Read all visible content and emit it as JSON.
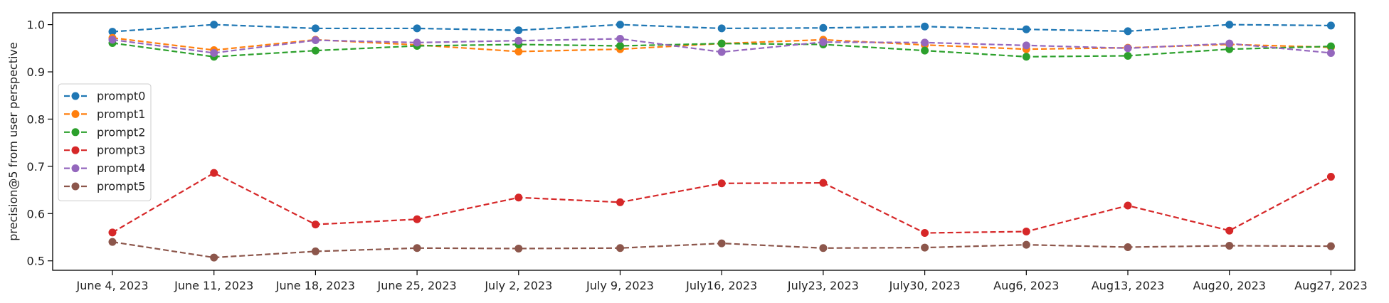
{
  "chart_data": {
    "type": "line",
    "title": "",
    "xlabel": "",
    "ylabel": "precision@5 from user perspective",
    "categories": [
      "June 4, 2023",
      "June 11, 2023",
      "June 18, 2023",
      "June 25, 2023",
      "July 2, 2023",
      "July 9, 2023",
      "July16, 2023",
      "July23, 2023",
      "July30, 2023",
      "Aug6, 2023",
      "Aug13, 2023",
      "Aug20, 2023",
      "Aug27, 2023"
    ],
    "ylim": [
      0.48,
      1.025
    ],
    "yticks": [
      0.5,
      0.6,
      0.7,
      0.8,
      0.9,
      1.0
    ],
    "ytick_labels": [
      "0.5",
      "0.6",
      "0.7",
      "0.8",
      "0.9",
      "1.0"
    ],
    "grid": false,
    "legend_position": "center-left",
    "line_style": "dashed",
    "marker": "circle",
    "series": [
      {
        "name": "prompt0",
        "color": "#1f77b4",
        "values": [
          0.985,
          1.0,
          0.992,
          0.992,
          0.988,
          1.0,
          0.992,
          0.993,
          0.996,
          0.99,
          0.986,
          1.0,
          0.998
        ]
      },
      {
        "name": "prompt1",
        "color": "#ff7f0e",
        "values": [
          0.972,
          0.946,
          0.968,
          0.957,
          0.943,
          0.948,
          0.96,
          0.968,
          0.957,
          0.948,
          0.951,
          0.958,
          0.952
        ]
      },
      {
        "name": "prompt2",
        "color": "#2ca02c",
        "values": [
          0.961,
          0.932,
          0.945,
          0.955,
          0.958,
          0.955,
          0.96,
          0.958,
          0.945,
          0.932,
          0.934,
          0.948,
          0.954
        ]
      },
      {
        "name": "prompt3",
        "color": "#d62728",
        "values": [
          0.56,
          0.686,
          0.577,
          0.588,
          0.634,
          0.624,
          0.664,
          0.665,
          0.559,
          0.562,
          0.617,
          0.564,
          0.678
        ]
      },
      {
        "name": "prompt4",
        "color": "#9467bd",
        "values": [
          0.968,
          0.94,
          0.967,
          0.962,
          0.966,
          0.97,
          0.942,
          0.963,
          0.962,
          0.956,
          0.95,
          0.96,
          0.94
        ]
      },
      {
        "name": "prompt5",
        "color": "#8c564b",
        "values": [
          0.54,
          0.507,
          0.52,
          0.527,
          0.526,
          0.527,
          0.537,
          0.527,
          0.528,
          0.534,
          0.529,
          0.532,
          0.531
        ]
      }
    ]
  }
}
